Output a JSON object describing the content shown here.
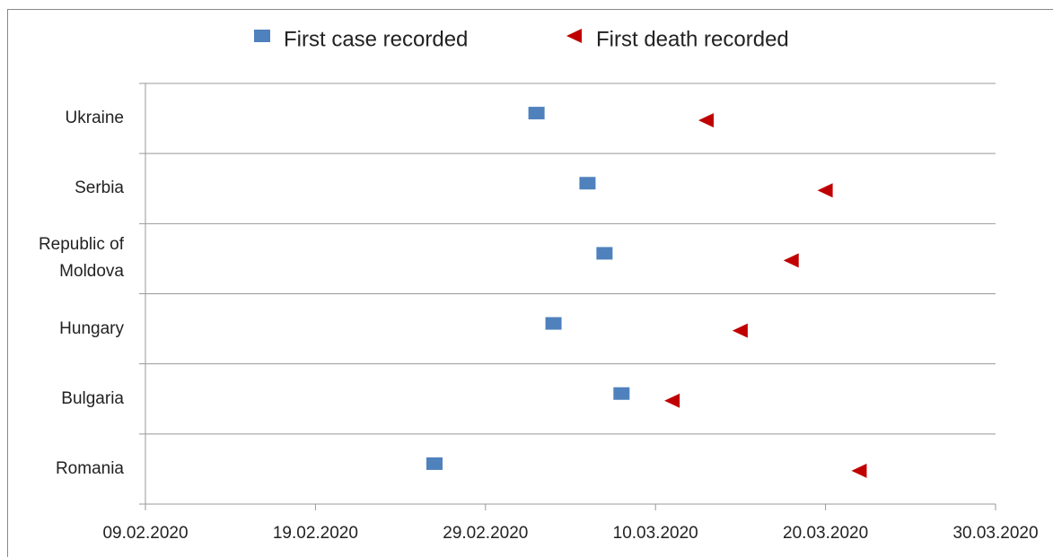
{
  "chart_data": {
    "type": "dot",
    "categories": [
      "Ukraine",
      "Serbia",
      "Republic of Moldova",
      "Hungary",
      "Bulgaria",
      "Romania"
    ],
    "series": [
      {
        "name": "First case recorded",
        "color": "#4f81bd",
        "marker": "square",
        "values": [
          "03.03.2020",
          "06.03.2020",
          "07.03.2020",
          "04.03.2020",
          "08.03.2020",
          "26.02.2020"
        ]
      },
      {
        "name": "First death recorded",
        "color": "#c00000",
        "marker": "triangle-left",
        "values": [
          "13.03.2020",
          "20.03.2020",
          "18.03.2020",
          "15.03.2020",
          "11.03.2020",
          "22.03.2020"
        ]
      }
    ],
    "xlim": [
      "09.02.2020",
      "30.03.2020"
    ],
    "xticks": [
      "09.02.2020",
      "19.02.2020",
      "29.02.2020",
      "10.03.2020",
      "20.03.2020",
      "30.03.2020"
    ],
    "grid": true,
    "legend": "top"
  }
}
